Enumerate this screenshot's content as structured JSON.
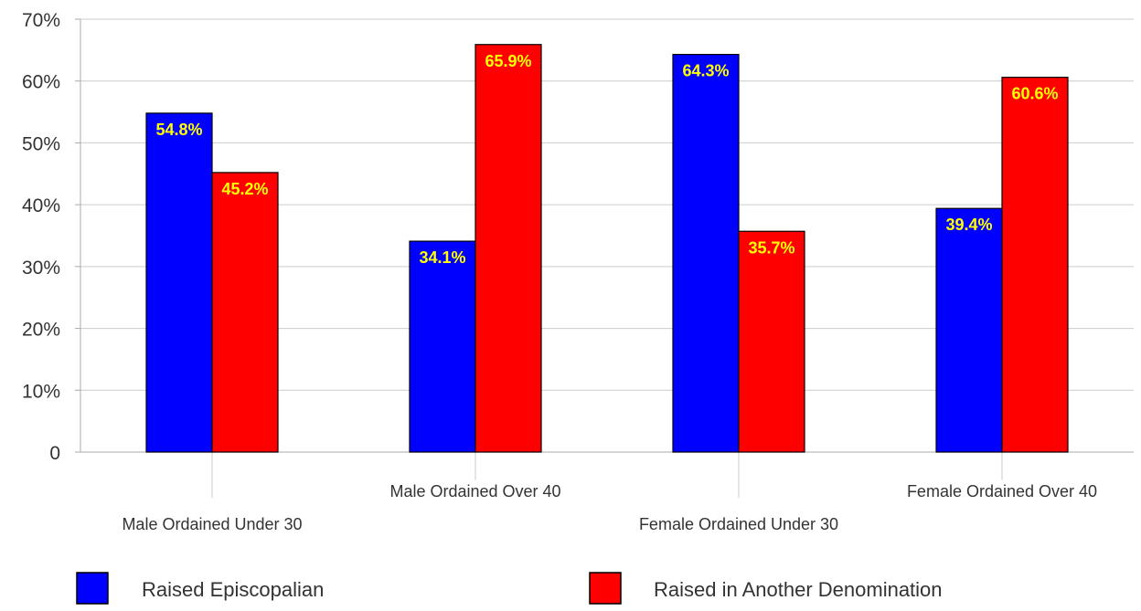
{
  "chart_data": {
    "type": "bar",
    "categories": [
      "Male Ordained Under 30",
      "Male Ordained Over 40",
      "Female Ordained Under 30",
      "Female Ordained Over 40"
    ],
    "series": [
      {
        "name": "Raised Episcopalian",
        "color": "#0000ff",
        "values": [
          54.8,
          34.1,
          64.3,
          39.4
        ],
        "labels": [
          "54.8%",
          "34.1%",
          "64.3%",
          "39.4%"
        ]
      },
      {
        "name": "Raised in Another Denomination",
        "color": "#ff0000",
        "values": [
          45.2,
          65.9,
          35.7,
          60.6
        ],
        "labels": [
          "45.2%",
          "65.9%",
          "35.7%",
          "60.6%"
        ]
      }
    ],
    "ylim": [
      0,
      70
    ],
    "yticks": [
      0,
      10,
      20,
      30,
      40,
      50,
      60,
      70
    ],
    "ytick_labels": [
      "0",
      "10%",
      "20%",
      "30%",
      "40%",
      "50%",
      "60%",
      "70%"
    ],
    "grid": true,
    "legend_position": "bottom",
    "data_label_color": "#ffff00"
  }
}
